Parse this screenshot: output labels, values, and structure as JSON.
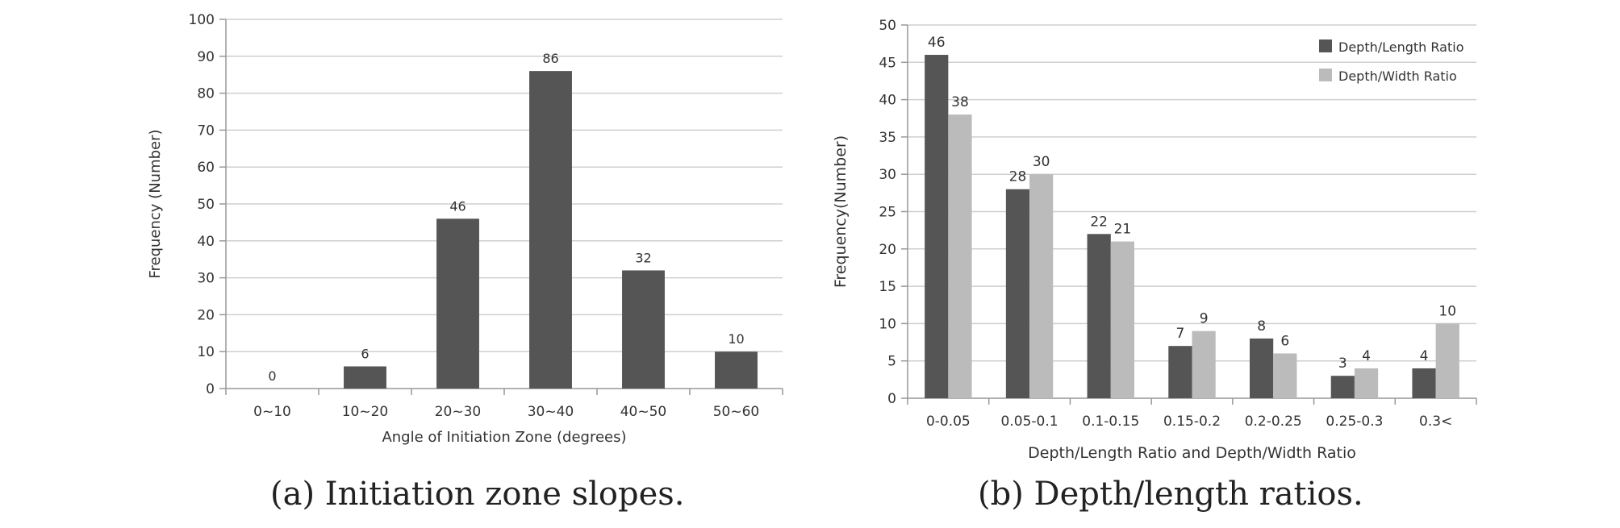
{
  "chart_data": [
    {
      "type": "bar",
      "caption": "(a) Initiation zone slopes.",
      "categories": [
        "0~10",
        "10~20",
        "20~30",
        "30~40",
        "40~50",
        "50~60"
      ],
      "values": [
        0,
        6,
        46,
        86,
        32,
        10
      ],
      "xlabel": "Angle of Initiation Zone (degrees)",
      "ylabel": "Frequency (Number)",
      "ylim": [
        0,
        100
      ],
      "yticks": [
        0,
        10,
        20,
        30,
        40,
        50,
        60,
        70,
        80,
        90,
        100
      ],
      "grid": true,
      "bar_color": "#555555"
    },
    {
      "type": "bar",
      "caption": "(b) Depth/length ratios.",
      "categories": [
        "0-0.05",
        "0.05-0.1",
        "0.1-0.15",
        "0.15-0.2",
        "0.2-0.25",
        "0.25-0.3",
        "0.3<"
      ],
      "series": [
        {
          "name": "Depth/Length Ratio",
          "values": [
            46,
            28,
            22,
            7,
            8,
            3,
            4
          ],
          "color": "#555555"
        },
        {
          "name": "Depth/Width Ratio",
          "values": [
            38,
            30,
            21,
            9,
            6,
            4,
            10
          ],
          "color": "#bbbbbb"
        }
      ],
      "xlabel": "Depth/Length Ratio and Depth/Width Ratio",
      "ylabel": "Frequency(Number)",
      "ylim": [
        0,
        50
      ],
      "yticks": [
        0,
        5,
        10,
        15,
        20,
        25,
        30,
        35,
        40,
        45,
        50
      ],
      "grid": true,
      "legend": "top-right"
    }
  ]
}
